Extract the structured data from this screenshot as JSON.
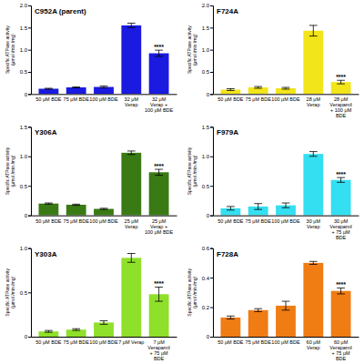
{
  "chart_data": [
    {
      "type": "bar",
      "title": "C952A (parent)",
      "y_label": "Specific ATPase activity (μmol /min /mg)",
      "categories": [
        "50 μM BDE",
        "75 μM BDE",
        "100 μM BDE",
        "32 μM Verap",
        "32 μM Verap + 100 μM BDE"
      ],
      "values": [
        0.12,
        0.15,
        0.16,
        1.55,
        0.92
      ],
      "errors": [
        0.01,
        0.01,
        0.02,
        0.05,
        0.07
      ],
      "significance": [
        null,
        null,
        null,
        null,
        "****"
      ],
      "color": "#1a1ae0",
      "ylim": [
        0,
        2
      ],
      "yticks": [
        0,
        0.5,
        {
          "value": 1,
          "label": "1.0"
        },
        1.5,
        {
          "value": 2,
          "label": "2.0"
        }
      ]
    },
    {
      "type": "bar",
      "title": "F724A",
      "y_label": "Specific ATPase activity (μmol /min /mg)",
      "categories": [
        "50 μM BDE",
        "75 μM BDE",
        "100 μM BDE",
        "28 μM Verap",
        "28 μM Verapamil + 100 μM BDE"
      ],
      "values": [
        0.1,
        0.15,
        0.13,
        1.43,
        0.27
      ],
      "errors": [
        0.02,
        0.02,
        0.02,
        0.12,
        0.04
      ],
      "significance": [
        null,
        null,
        null,
        null,
        "****"
      ],
      "color": "#f2e51a",
      "ylim": [
        0,
        2
      ],
      "yticks": [
        0,
        0.5,
        {
          "value": 1,
          "label": "1.0"
        },
        1.5,
        {
          "value": 2,
          "label": "2.0"
        }
      ]
    },
    {
      "type": "bar",
      "title": "Y306A",
      "y_label": "Specific ATPase activity (μmol /min /mg)",
      "categories": [
        "50 μM BDE",
        "75 μM BDE",
        "100 μM BDE",
        "25 μM Verap",
        "25 μM Verap + 100 μM BDE"
      ],
      "values": [
        0.2,
        0.18,
        0.11,
        1.06,
        0.73
      ],
      "errors": [
        0.01,
        0.01,
        0.01,
        0.03,
        0.05
      ],
      "significance": [
        null,
        null,
        null,
        null,
        "****"
      ],
      "color": "#3a7a14",
      "ylim": [
        0,
        1.5
      ],
      "yticks": [
        0,
        0.5,
        {
          "value": 1,
          "label": "1.0"
        },
        1.5
      ]
    },
    {
      "type": "bar",
      "title": "F979A",
      "y_label": "Specific ATPase activity (μmol /min /mg)",
      "categories": [
        "50 μM BDE",
        "75 μM BDE",
        "100 μM BDE",
        "30 μM Verap",
        "30 μM Verapamil + 75 μM BDE"
      ],
      "values": [
        0.12,
        0.15,
        0.17,
        1.04,
        0.6
      ],
      "errors": [
        0.03,
        0.05,
        0.04,
        0.04,
        0.04
      ],
      "significance": [
        null,
        null,
        null,
        null,
        "****"
      ],
      "color": "#33dff0",
      "ylim": [
        0,
        1.5
      ],
      "yticks": [
        0,
        0.5,
        {
          "value": 1,
          "label": "1.0"
        },
        1.5
      ]
    },
    {
      "type": "bar",
      "title": "Y303A",
      "y_label": "Specific ATPase activity (μmol /min /mg)",
      "categories": [
        "50 μM BDE",
        "75 μM BDE",
        "100 μM BDE",
        "7 μM Verap",
        "7 μM Verapamil + 75 μM BDE"
      ],
      "values": [
        0.06,
        0.08,
        0.16,
        0.89,
        0.48
      ],
      "errors": [
        0.01,
        0.01,
        0.02,
        0.05,
        0.08
      ],
      "significance": [
        null,
        null,
        null,
        null,
        "****"
      ],
      "color": "#8fe02a",
      "ylim": [
        0,
        1
      ],
      "yticks": [
        0,
        0.5,
        {
          "value": 1,
          "label": "1.0"
        }
      ]
    },
    {
      "type": "bar",
      "title": "F728A",
      "y_label": "Specific ATPase activity (μmol /min /mg)",
      "categories": [
        "50 μM BDE",
        "75 μM BDE",
        "100 μM BDE",
        "60 μM Verap",
        "60 μM Verapamil + 75 μM BDE"
      ],
      "values": [
        0.13,
        0.18,
        0.21,
        0.5,
        0.31
      ],
      "errors": [
        0.01,
        0.01,
        0.03,
        0.01,
        0.02
      ],
      "significance": [
        null,
        null,
        null,
        null,
        "****"
      ],
      "color": "#f07c14",
      "ylim": [
        0,
        0.6
      ],
      "yticks": [
        0,
        0.2,
        0.4,
        0.6
      ]
    }
  ]
}
